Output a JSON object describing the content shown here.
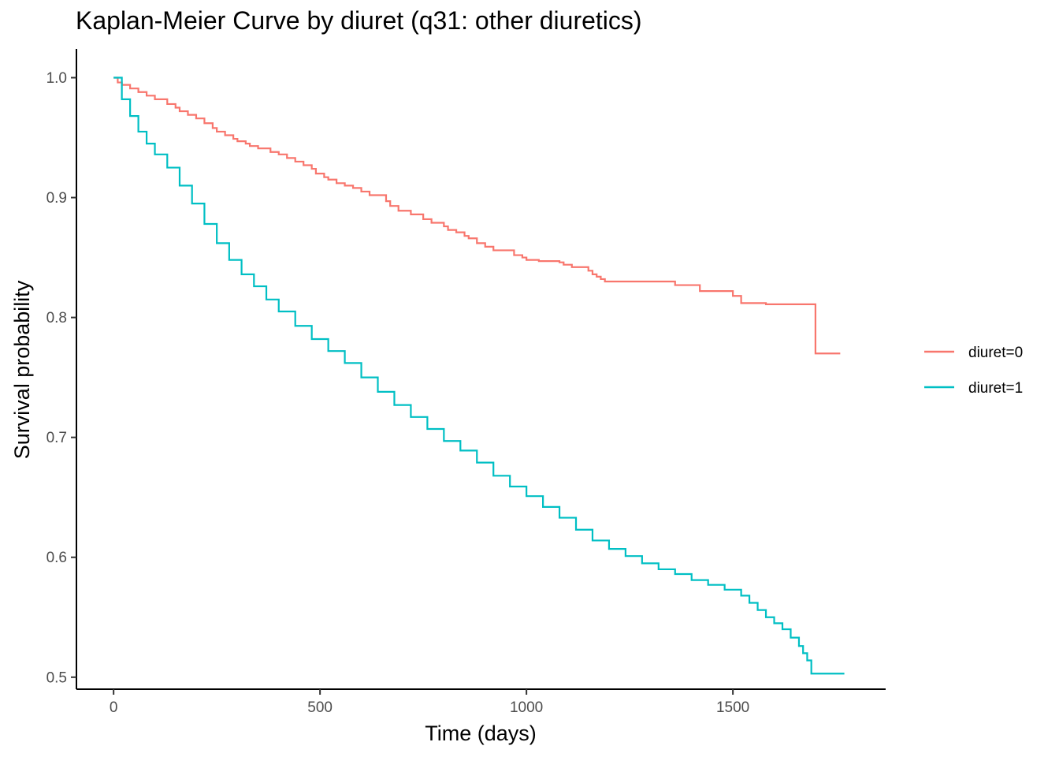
{
  "chart_data": {
    "type": "line",
    "title": "Kaplan-Meier Curve by diuret (q31: other diuretics)",
    "xlabel": "Time (days)",
    "ylabel": "Survival probability",
    "xlim": [
      -90,
      1870
    ],
    "ylim": [
      0.49,
      1.024
    ],
    "x_ticks": [
      0,
      500,
      1000,
      1500
    ],
    "x_tick_labels": [
      "0",
      "500",
      "1000",
      "1500"
    ],
    "y_ticks": [
      0.5,
      0.6,
      0.7,
      0.8,
      0.9,
      1.0
    ],
    "y_tick_labels": [
      "0.5",
      "0.6",
      "0.7",
      "0.8",
      "0.9",
      "1.0"
    ],
    "grid": false,
    "legend_position": "right",
    "series": [
      {
        "name": "diuret=0",
        "color": "#F8766D",
        "step": true,
        "x": [
          0,
          10,
          20,
          40,
          60,
          80,
          100,
          130,
          150,
          160,
          180,
          200,
          220,
          240,
          250,
          270,
          290,
          300,
          320,
          330,
          350,
          380,
          400,
          420,
          440,
          460,
          480,
          490,
          510,
          520,
          540,
          560,
          580,
          600,
          620,
          660,
          670,
          690,
          720,
          750,
          770,
          800,
          810,
          830,
          850,
          860,
          880,
          900,
          920,
          970,
          990,
          1000,
          1030,
          1080,
          1090,
          1110,
          1150,
          1160,
          1170,
          1180,
          1190,
          1310,
          1360,
          1380,
          1420,
          1500,
          1520,
          1580,
          1680,
          1690,
          1700,
          1760
        ],
        "y": [
          1.0,
          0.996,
          0.994,
          0.991,
          0.988,
          0.985,
          0.982,
          0.978,
          0.975,
          0.972,
          0.969,
          0.966,
          0.962,
          0.958,
          0.955,
          0.952,
          0.949,
          0.947,
          0.945,
          0.943,
          0.941,
          0.938,
          0.936,
          0.933,
          0.93,
          0.927,
          0.924,
          0.92,
          0.917,
          0.915,
          0.912,
          0.91,
          0.908,
          0.905,
          0.902,
          0.897,
          0.893,
          0.889,
          0.886,
          0.882,
          0.879,
          0.876,
          0.873,
          0.871,
          0.868,
          0.866,
          0.862,
          0.859,
          0.856,
          0.852,
          0.85,
          0.848,
          0.847,
          0.846,
          0.844,
          0.842,
          0.839,
          0.836,
          0.834,
          0.832,
          0.83,
          0.83,
          0.827,
          0.827,
          0.822,
          0.818,
          0.812,
          0.811,
          0.811,
          0.811,
          0.77,
          0.77
        ]
      },
      {
        "name": "diuret=1",
        "color": "#00BFC4",
        "step": true,
        "x": [
          0,
          20,
          40,
          60,
          80,
          100,
          130,
          160,
          190,
          220,
          250,
          280,
          310,
          340,
          370,
          400,
          440,
          480,
          520,
          560,
          600,
          640,
          680,
          720,
          760,
          800,
          840,
          880,
          920,
          960,
          1000,
          1040,
          1080,
          1120,
          1160,
          1200,
          1240,
          1280,
          1320,
          1360,
          1400,
          1440,
          1480,
          1520,
          1540,
          1560,
          1580,
          1600,
          1620,
          1640,
          1660,
          1670,
          1680,
          1690,
          1700,
          1750,
          1770
        ],
        "y": [
          1.0,
          0.982,
          0.968,
          0.955,
          0.945,
          0.936,
          0.925,
          0.91,
          0.895,
          0.878,
          0.862,
          0.848,
          0.836,
          0.826,
          0.815,
          0.805,
          0.793,
          0.782,
          0.772,
          0.762,
          0.75,
          0.738,
          0.727,
          0.717,
          0.707,
          0.697,
          0.689,
          0.679,
          0.668,
          0.659,
          0.651,
          0.642,
          0.633,
          0.623,
          0.614,
          0.607,
          0.601,
          0.595,
          0.59,
          0.586,
          0.581,
          0.577,
          0.573,
          0.568,
          0.562,
          0.556,
          0.55,
          0.545,
          0.54,
          0.533,
          0.526,
          0.52,
          0.514,
          0.503,
          0.503,
          0.503,
          0.503
        ]
      }
    ]
  }
}
